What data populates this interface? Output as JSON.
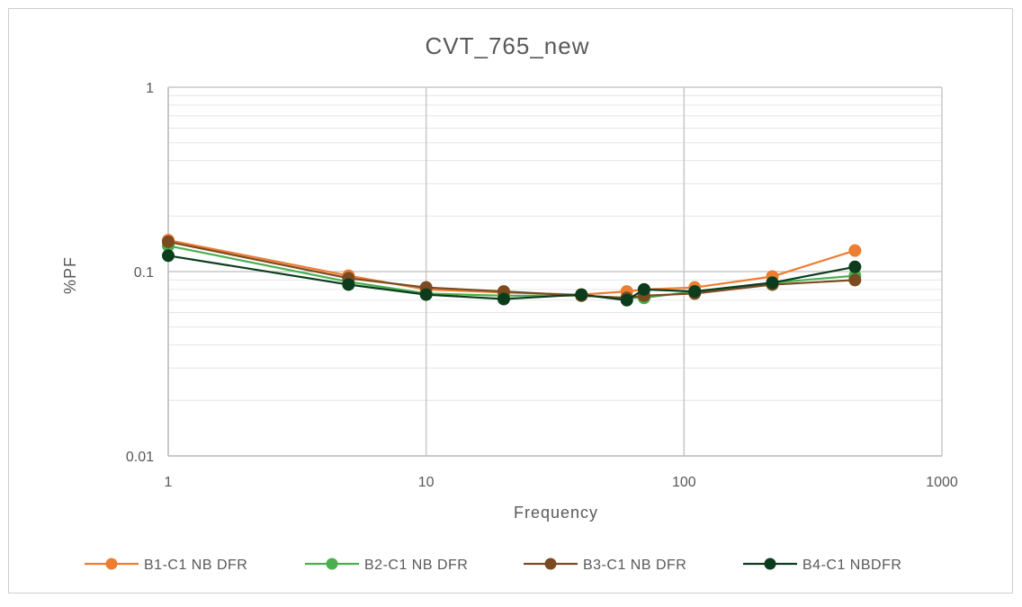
{
  "chart_data": {
    "type": "line",
    "title": "CVT_765_new",
    "xlabel": "Frequency",
    "ylabel": "%PF",
    "xscale": "log",
    "yscale": "log",
    "xlim": [
      1,
      1000
    ],
    "ylim": [
      0.01,
      1
    ],
    "x_ticks": [
      {
        "value": 1,
        "label": "1"
      },
      {
        "value": 10,
        "label": "10"
      },
      {
        "value": 100,
        "label": "100"
      },
      {
        "value": 1000,
        "label": "1000"
      }
    ],
    "y_ticks": [
      {
        "value": 0.01,
        "label": "0.01"
      },
      {
        "value": 0.1,
        "label": "0.1"
      },
      {
        "value": 1,
        "label": "1"
      }
    ],
    "grid": true,
    "legend_position": "bottom",
    "x": [
      1,
      5,
      10,
      20,
      40,
      60,
      70,
      110,
      220,
      460
    ],
    "series": [
      {
        "name": "B1-C1 NB DFR",
        "color": "#ed7d31",
        "values": [
          0.148,
          0.095,
          0.08,
          0.077,
          0.075,
          0.078,
          0.08,
          0.082,
          0.094,
          0.13
        ]
      },
      {
        "name": "B2-C1 NB DFR",
        "color": "#4caf50",
        "values": [
          0.138,
          0.088,
          0.076,
          0.074,
          0.074,
          0.072,
          0.072,
          0.078,
          0.087,
          0.095
        ]
      },
      {
        "name": "B3-C1 NB DFR",
        "color": "#7b4a21",
        "values": [
          0.145,
          0.092,
          0.082,
          0.078,
          0.074,
          0.072,
          0.074,
          0.076,
          0.085,
          0.09
        ]
      },
      {
        "name": "B4-C1 NBDFR",
        "color": "#0b3d1d",
        "values": [
          0.122,
          0.085,
          0.075,
          0.071,
          0.075,
          0.07,
          0.08,
          0.078,
          0.087,
          0.106
        ]
      }
    ]
  }
}
